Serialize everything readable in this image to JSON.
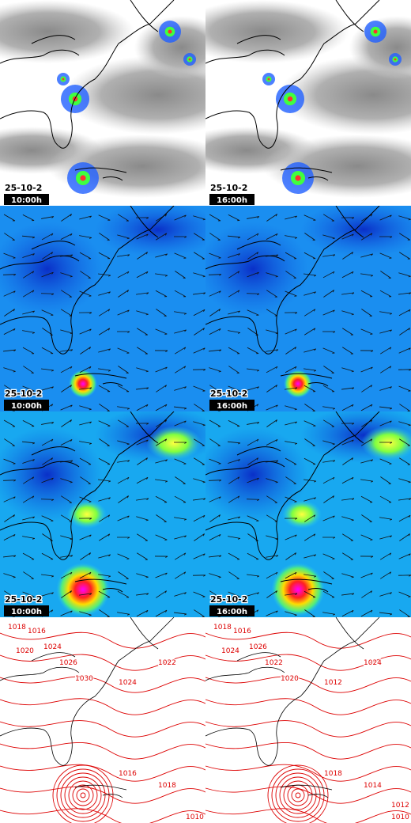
{
  "rows": [
    {
      "panels": [
        {
          "date": "25-10-2",
          "time": "10:00h"
        },
        {
          "date": "25-10-2",
          "time": "16:00h"
        }
      ]
    },
    {
      "panels": [
        {
          "date": "25-10-2",
          "time": "10:00h"
        },
        {
          "date": "25-10-2",
          "time": "16:00h"
        }
      ]
    },
    {
      "panels": [
        {
          "date": "25-10-2",
          "time": "10:00h"
        },
        {
          "date": "25-10-2",
          "time": "16:00h"
        }
      ]
    }
  ],
  "isobars": {
    "panels": [
      {
        "labels": [
          "1018",
          "1016",
          "1020",
          "1024",
          "1026",
          "1030",
          "1022",
          "1024",
          "1016",
          "1018",
          "1010"
        ]
      },
      {
        "labels": [
          "1018",
          "1016",
          "1024",
          "1026",
          "1022",
          "1020",
          "1024",
          "1012",
          "1018",
          "1014",
          "1010",
          "1012"
        ]
      }
    ]
  }
}
